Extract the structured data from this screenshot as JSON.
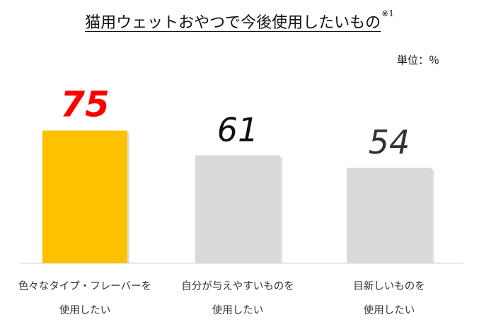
{
  "chart_data": {
    "type": "bar",
    "title": "猫用ウェットおやつで今後使用したいもの",
    "title_note": "※1",
    "unit": "単位：％",
    "categories": [
      [
        "色々なタイプ・フレーバーを",
        "使用したい"
      ],
      [
        "自分が与えやすいものを",
        "使用したい"
      ],
      [
        "目新しいものを",
        "使用したい"
      ]
    ],
    "values": [
      75,
      61,
      54
    ],
    "ylim": [
      0,
      100
    ],
    "grid": false,
    "legend": "none",
    "colors": [
      "#FFC000",
      "#D9D9D9",
      "#D9D9D9"
    ],
    "label_colors": [
      "#FF0000",
      "#111111",
      "#333333"
    ]
  }
}
